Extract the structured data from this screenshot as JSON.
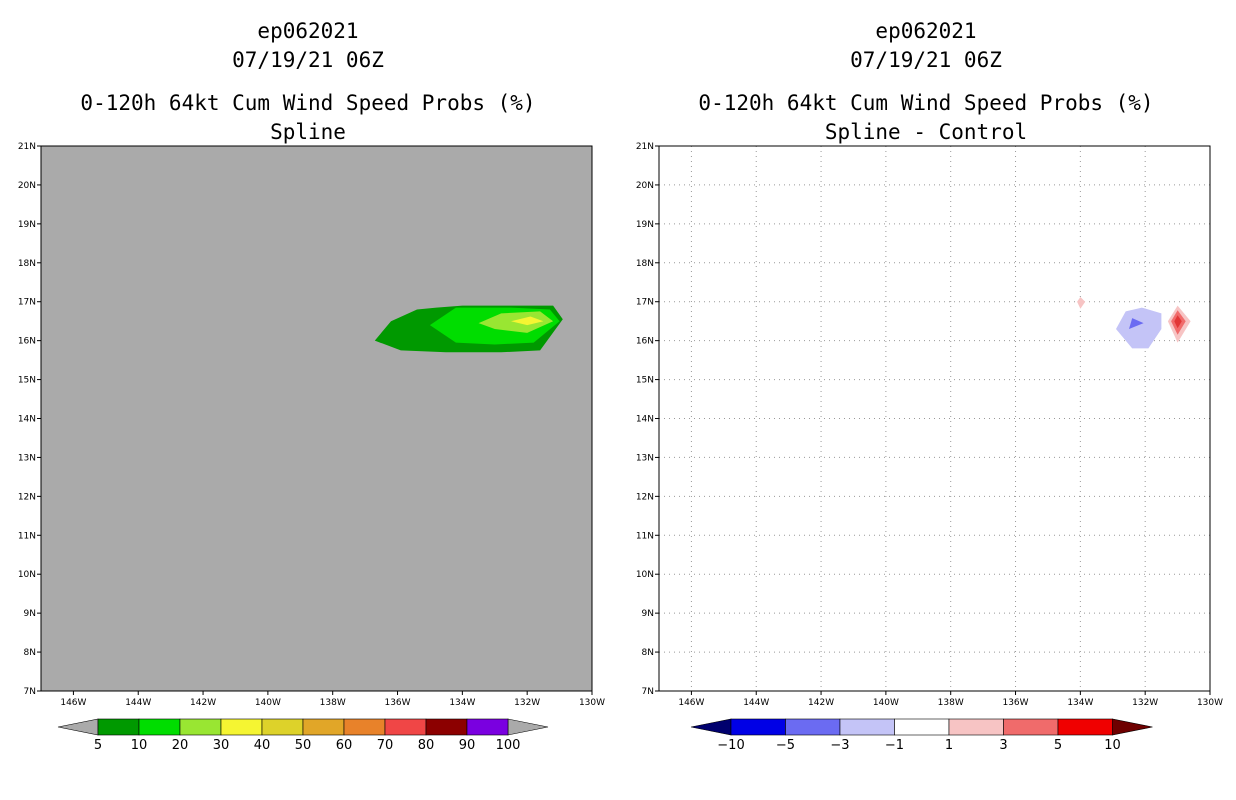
{
  "panels": [
    {
      "name": "left",
      "titles": [
        "ep062021",
        "07/19/21 06Z",
        "0-120h 64kt Cum Wind Speed Probs (%)",
        "Spline"
      ],
      "background_color": "#aaaaaa",
      "grid": false,
      "colorbar": {
        "labels": [
          "5",
          "10",
          "20",
          "30",
          "40",
          "50",
          "60",
          "70",
          "80",
          "90",
          "100"
        ],
        "colors": [
          "#009900",
          "#00dd00",
          "#99e632",
          "#f5f532",
          "#ddd22a",
          "#e1a628",
          "#e8822a",
          "#f04646",
          "#8c0000",
          "#7a00e0"
        ],
        "ends": [
          "#aaaaaa",
          "#aaaaaa"
        ]
      }
    },
    {
      "name": "right",
      "titles": [
        "ep062021",
        "07/19/21 06Z",
        "0-120h 64kt Cum Wind Speed Probs (%)",
        "Spline - Control"
      ],
      "background_color": "#ffffff",
      "grid": true,
      "colorbar": {
        "labels": [
          "−10",
          "−5",
          "−3",
          "−1",
          "1",
          "3",
          "5",
          "10"
        ],
        "colors": [
          "#0000e6",
          "#6b6bf2",
          "#c4c4f7",
          "#ffffff",
          "#f7c4c4",
          "#f06b6b",
          "#f00000"
        ],
        "ends": [
          "#00006e",
          "#6e0000"
        ]
      }
    }
  ],
  "chart_data": [
    {
      "type": "heatmap",
      "title": "0-120h 64kt Cum Wind Speed Probs (%)",
      "subtitle": "Spline",
      "storm": "ep062021",
      "time": "07/19/21 06Z",
      "xlim": [
        -147,
        -130
      ],
      "ylim": [
        7,
        21
      ],
      "x_tick_labels": [
        "146W",
        "144W",
        "142W",
        "140W",
        "138W",
        "136W",
        "134W",
        "132W",
        "130W"
      ],
      "y_tick_labels": [
        "7N",
        "8N",
        "9N",
        "10N",
        "11N",
        "12N",
        "13N",
        "14N",
        "15N",
        "16N",
        "17N",
        "18N",
        "19N",
        "20N",
        "21N"
      ],
      "contour_levels": [
        5,
        10,
        20,
        30,
        40,
        50,
        60,
        70,
        80,
        90,
        100
      ],
      "regions": [
        {
          "level": 5,
          "color": "#009900",
          "polygon": [
            [
              -136.7,
              16.0
            ],
            [
              -136.2,
              16.5
            ],
            [
              -135.4,
              16.8
            ],
            [
              -134.8,
              16.85
            ],
            [
              -134,
              16.9
            ],
            [
              -132.5,
              16.9
            ],
            [
              -131.2,
              16.9
            ],
            [
              -130.9,
              16.55
            ],
            [
              -131.6,
              15.75
            ],
            [
              -132.8,
              15.7
            ],
            [
              -134.5,
              15.7
            ],
            [
              -135.9,
              15.75
            ]
          ]
        },
        {
          "level": 10,
          "color": "#00dd00",
          "polygon": [
            [
              -135.0,
              16.4
            ],
            [
              -134.2,
              16.85
            ],
            [
              -132.5,
              16.85
            ],
            [
              -131.3,
              16.8
            ],
            [
              -131.0,
              16.5
            ],
            [
              -131.8,
              15.95
            ],
            [
              -133.0,
              15.9
            ],
            [
              -134.2,
              15.95
            ]
          ]
        },
        {
          "level": 20,
          "color": "#99e632",
          "polygon": [
            [
              -133.5,
              16.45
            ],
            [
              -132.8,
              16.7
            ],
            [
              -131.6,
              16.75
            ],
            [
              -131.2,
              16.5
            ],
            [
              -132.0,
              16.2
            ],
            [
              -133.0,
              16.3
            ]
          ]
        },
        {
          "level": 30,
          "color": "#f5f532",
          "polygon": [
            [
              -132.5,
              16.5
            ],
            [
              -131.9,
              16.62
            ],
            [
              -131.5,
              16.5
            ],
            [
              -132.0,
              16.4
            ]
          ]
        }
      ]
    },
    {
      "type": "heatmap",
      "title": "0-120h 64kt Cum Wind Speed Probs (%)",
      "subtitle": "Spline - Control",
      "storm": "ep062021",
      "time": "07/19/21 06Z",
      "xlim": [
        -147,
        -130
      ],
      "ylim": [
        7,
        21
      ],
      "x_tick_labels": [
        "146W",
        "144W",
        "142W",
        "140W",
        "138W",
        "136W",
        "134W",
        "132W",
        "130W"
      ],
      "y_tick_labels": [
        "7N",
        "8N",
        "9N",
        "10N",
        "11N",
        "12N",
        "13N",
        "14N",
        "15N",
        "16N",
        "17N",
        "18N",
        "19N",
        "20N",
        "21N"
      ],
      "contour_levels": [
        -10,
        -5,
        -3,
        -1,
        1,
        3,
        5,
        10
      ],
      "regions": [
        {
          "level": 1,
          "color": "#f7c4c4",
          "polygon": [
            [
              -134.1,
              17.0
            ],
            [
              -134.0,
              17.12
            ],
            [
              -133.85,
              17.0
            ],
            [
              -134.0,
              16.82
            ]
          ]
        },
        {
          "level": -1,
          "color": "#c4c4f7",
          "polygon": [
            [
              -132.9,
              16.3
            ],
            [
              -132.6,
              16.75
            ],
            [
              -132.1,
              16.85
            ],
            [
              -131.5,
              16.7
            ],
            [
              -131.5,
              16.3
            ],
            [
              -131.9,
              15.8
            ],
            [
              -132.4,
              15.8
            ]
          ]
        },
        {
          "level": -3,
          "color": "#6b6bf2",
          "polygon": [
            [
              -132.5,
              16.3
            ],
            [
              -132.4,
              16.58
            ],
            [
              -132.05,
              16.45
            ]
          ]
        },
        {
          "level": 1,
          "color": "#f7c4c4",
          "polygon": [
            [
              -131.3,
              16.5
            ],
            [
              -131.0,
              16.9
            ],
            [
              -130.6,
              16.5
            ],
            [
              -131.0,
              15.95
            ]
          ]
        },
        {
          "level": 3,
          "color": "#f06b6b",
          "polygon": [
            [
              -131.2,
              16.5
            ],
            [
              -131.0,
              16.78
            ],
            [
              -130.75,
              16.5
            ],
            [
              -131.0,
              16.15
            ]
          ]
        },
        {
          "level": 5,
          "color": "#e23636",
          "polygon": [
            [
              -131.1,
              16.5
            ],
            [
              -131.0,
              16.65
            ],
            [
              -130.87,
              16.5
            ],
            [
              -131.0,
              16.32
            ]
          ]
        }
      ]
    }
  ]
}
